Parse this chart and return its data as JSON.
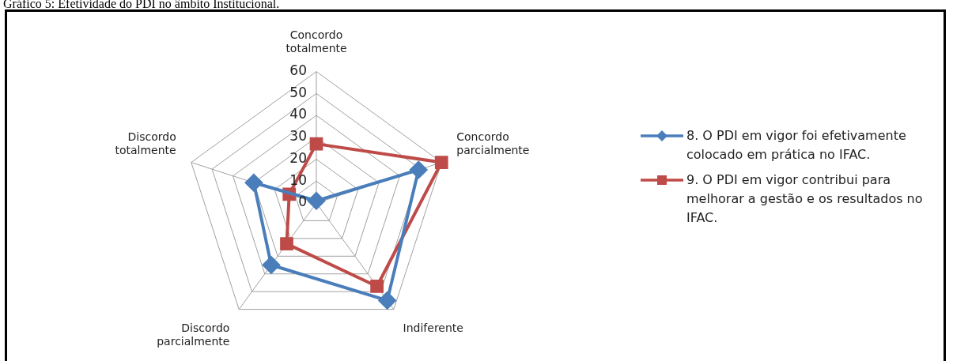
{
  "chart_data": {
    "type": "radar",
    "title": "Gráfico 5: Efetividade do PDI no âmbito Institucional.",
    "categories": [
      "Concordo totalmente",
      "Concordo parcialmente",
      "Indiferente",
      "Discordo parcialmente",
      "Discordo totalmente"
    ],
    "series": [
      {
        "name": "8. O PDI em vigor foi efetivamente colocado em prática no IFAC.",
        "color": "#4a7ebb",
        "marker": "diamond",
        "values": [
          1,
          49,
          55,
          35,
          30
        ]
      },
      {
        "name": "9. O PDI em vigor contribui para melhorar a gestão e os resultados no IFAC.",
        "color": "#be4b48",
        "marker": "square",
        "values": [
          27,
          60,
          47,
          23,
          13
        ]
      }
    ],
    "ylim": [
      0,
      60
    ],
    "yticks": [
      0,
      10,
      20,
      30,
      40,
      50,
      60
    ],
    "grid": true,
    "legend": "right"
  }
}
